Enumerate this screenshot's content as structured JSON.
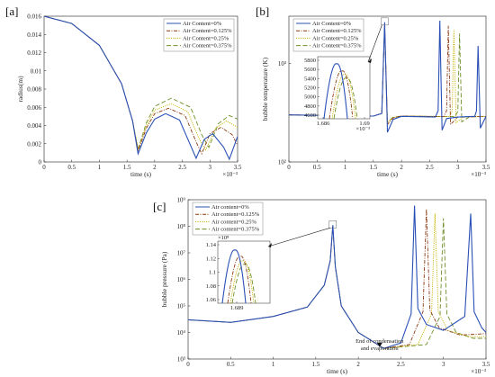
{
  "colors": {
    "air_0": "#2a50b6",
    "air_0125": "#8b3a14",
    "air_025": "#c5b300",
    "air_0375": "#6f8f29"
  },
  "chart_data": [
    {
      "panel": "[a]",
      "type": "line",
      "xlabel": "time (s)",
      "ylabel": "radius(m)",
      "x_exponent": "×10⁻³",
      "xlim": [
        0,
        3.5
      ],
      "ylim": [
        0,
        0.016
      ],
      "xticks": [
        "0",
        "0.5",
        "1",
        "1.5",
        "2",
        "2.5",
        "3",
        "3.5"
      ],
      "yticks": [
        "0",
        "0.002",
        "0.004",
        "0.006",
        "0.008",
        "0.01",
        "0.012",
        "0.014",
        "0.016"
      ],
      "legend_position": "top-right",
      "series": [
        {
          "name": "Air Content=0%",
          "x": [
            0,
            0.5,
            1.0,
            1.4,
            1.6,
            1.7,
            1.85,
            2.0,
            2.2,
            2.45,
            2.65,
            2.75,
            2.9,
            3.05,
            3.25,
            3.35,
            3.5
          ],
          "y": [
            0.016,
            0.0152,
            0.0128,
            0.0086,
            0.0045,
            0.0009,
            0.0032,
            0.0047,
            0.0053,
            0.0046,
            0.0018,
            0.0004,
            0.0025,
            0.0031,
            0.0016,
            0.0003,
            0.0028
          ]
        },
        {
          "name": "Air Content=0.125%",
          "x": [
            0,
            0.5,
            1.0,
            1.4,
            1.6,
            1.7,
            1.85,
            2.0,
            2.25,
            2.55,
            2.75,
            2.85,
            3.0,
            3.2,
            3.4,
            3.5
          ],
          "y": [
            0.016,
            0.0152,
            0.0128,
            0.0086,
            0.0045,
            0.0012,
            0.0037,
            0.0053,
            0.0059,
            0.0051,
            0.0022,
            0.0009,
            0.0031,
            0.0038,
            0.003,
            0.0018
          ]
        },
        {
          "name": "Air Content=0.25%",
          "x": [
            0,
            0.5,
            1.0,
            1.4,
            1.6,
            1.7,
            1.85,
            2.0,
            2.3,
            2.6,
            2.8,
            2.92,
            3.1,
            3.3,
            3.5
          ],
          "y": [
            0.016,
            0.0152,
            0.0128,
            0.0086,
            0.0045,
            0.0013,
            0.004,
            0.0057,
            0.0064,
            0.0055,
            0.0026,
            0.0013,
            0.0037,
            0.0045,
            0.0038
          ]
        },
        {
          "name": "Air Content=0.375%",
          "x": [
            0,
            0.5,
            1.0,
            1.4,
            1.6,
            1.7,
            1.85,
            2.0,
            2.3,
            2.65,
            2.85,
            2.98,
            3.15,
            3.35,
            3.5
          ],
          "y": [
            0.016,
            0.0152,
            0.0128,
            0.0086,
            0.0045,
            0.0014,
            0.0043,
            0.0061,
            0.007,
            0.006,
            0.003,
            0.0016,
            0.0042,
            0.0051,
            0.0047
          ]
        }
      ]
    },
    {
      "panel": "[b]",
      "type": "line",
      "xlabel": "time (s)",
      "ylabel": "bubble temperature (K)",
      "x_exponent": "×10⁻³",
      "xlim": [
        0,
        3.5
      ],
      "yscale": "log",
      "ylim": [
        100,
        3000
      ],
      "xticks": [
        "0",
        "0.5",
        "1",
        "1.5",
        "2",
        "2.5",
        "3",
        "3.5"
      ],
      "yticks": [
        "10²",
        "10³"
      ],
      "legend_position": "top-left",
      "series": [
        {
          "name": "Air Content=0%",
          "x": [
            0,
            1.5,
            1.65,
            1.7,
            1.75,
            1.85,
            2.0,
            2.6,
            2.65,
            2.68,
            2.72,
            2.8,
            3.0,
            3.3,
            3.33,
            3.36,
            3.4,
            3.5
          ],
          "y": [
            300,
            292,
            310,
            2600,
            200,
            270,
            290,
            285,
            330,
            2700,
            210,
            275,
            285,
            290,
            330,
            1500,
            220,
            290
          ]
        },
        {
          "name": "Air Content=0.125%",
          "x": [
            0,
            1.5,
            1.65,
            1.7,
            1.75,
            1.85,
            2.0,
            2.75,
            2.8,
            2.83,
            2.87,
            3.0,
            3.5
          ],
          "y": [
            300,
            292,
            310,
            2450,
            240,
            280,
            292,
            288,
            330,
            2400,
            240,
            285,
            290
          ]
        },
        {
          "name": "Air Content=0.25%",
          "x": [
            0,
            1.5,
            1.65,
            1.7,
            1.75,
            1.85,
            2.0,
            2.85,
            2.9,
            2.93,
            2.97,
            3.1,
            3.5
          ],
          "y": [
            300,
            292,
            310,
            2350,
            250,
            282,
            292,
            288,
            330,
            2200,
            250,
            285,
            290
          ]
        },
        {
          "name": "Air Content=0.375%",
          "x": [
            0,
            1.5,
            1.65,
            1.7,
            1.75,
            1.85,
            2.0,
            2.95,
            3.0,
            3.03,
            3.07,
            3.2,
            3.5
          ],
          "y": [
            300,
            292,
            310,
            2300,
            255,
            284,
            292,
            288,
            325,
            2000,
            255,
            285,
            290
          ]
        }
      ],
      "inset": {
        "yticks": [
          "4600",
          "4800",
          "5000",
          "5200",
          "5400",
          "5600",
          "5800"
        ],
        "xticks": [
          "1.686",
          "1.69"
        ],
        "x_exponent": "×10⁻³"
      }
    },
    {
      "panel": "[c]",
      "type": "line",
      "xlabel": "time (s)",
      "ylabel": "bubble pressure (Pa)",
      "x_exponent": "×10⁻³",
      "xlim": [
        0,
        3.5
      ],
      "yscale": "log",
      "ylim": [
        1000,
        1000000000
      ],
      "xticks": [
        "0",
        "0.5",
        "1",
        "1.5",
        "2",
        "2.5",
        "3",
        "3.5"
      ],
      "yticks": [
        "10³",
        "10⁴",
        "10⁵",
        "10⁶",
        "10⁷",
        "10⁸",
        "10⁹"
      ],
      "legend_position": "top-left",
      "annotation": [
        "End of  condensation",
        "and evaporation"
      ],
      "series": [
        {
          "name": "Air content=0%",
          "x": [
            0,
            0.5,
            1.0,
            1.4,
            1.6,
            1.67,
            1.7,
            1.73,
            1.8,
            2.0,
            2.3,
            2.5,
            2.62,
            2.66,
            2.7,
            2.8,
            3.0,
            3.25,
            3.32,
            3.36,
            3.45,
            3.5
          ],
          "y": [
            30000,
            24000,
            40000,
            90000,
            600000,
            5000000,
            110000000,
            3000000,
            100000,
            10000,
            2500,
            4000,
            50000,
            600000000,
            80000,
            20000,
            12000,
            40000,
            300000000,
            60000,
            15000,
            10000
          ]
        },
        {
          "name": "Air content=0.125%",
          "x": [
            0,
            0.5,
            1.0,
            1.4,
            1.6,
            1.67,
            1.7,
            1.73,
            1.8,
            2.0,
            2.3,
            2.6,
            2.76,
            2.8,
            2.84,
            2.95,
            3.2,
            3.5
          ],
          "y": [
            30000,
            24000,
            40000,
            90000,
            600000,
            5000000,
            105000000,
            3000000,
            100000,
            10000,
            2500,
            3500,
            60000,
            450000000,
            70000,
            15000,
            8000,
            9000
          ]
        },
        {
          "name": "Air content=0.25%",
          "x": [
            0,
            0.5,
            1.0,
            1.4,
            1.6,
            1.67,
            1.7,
            1.73,
            1.8,
            2.0,
            2.3,
            2.7,
            2.86,
            2.9,
            2.94,
            3.05,
            3.3,
            3.5
          ],
          "y": [
            30000,
            24000,
            40000,
            90000,
            600000,
            5000000,
            100000000,
            3000000,
            100000,
            10000,
            2500,
            3500,
            50000,
            300000000,
            60000,
            12000,
            7000,
            7000
          ]
        },
        {
          "name": "Air content=0.375%",
          "x": [
            0,
            0.5,
            1.0,
            1.4,
            1.6,
            1.67,
            1.7,
            1.73,
            1.8,
            2.0,
            2.3,
            2.8,
            2.96,
            3.0,
            3.04,
            3.15,
            3.35,
            3.5
          ],
          "y": [
            30000,
            24000,
            40000,
            90000,
            600000,
            5000000,
            100000000,
            3000000,
            100000,
            10000,
            2500,
            3500,
            40000,
            200000000,
            50000,
            10000,
            6000,
            6000
          ]
        }
      ],
      "inset": {
        "yticks": [
          "1.06",
          "1.08",
          "1.1",
          "1.12",
          "1.14"
        ],
        "y_exponent": "×10⁸",
        "xticks": [
          "1.689"
        ]
      }
    }
  ]
}
